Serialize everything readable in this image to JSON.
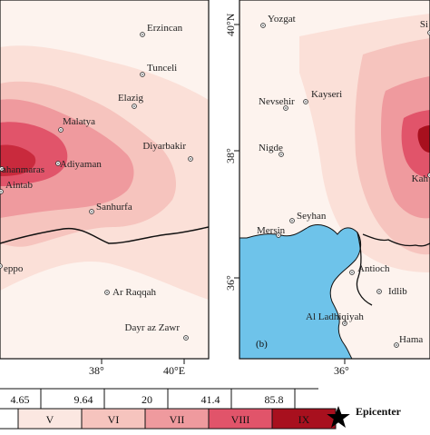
{
  "colors": {
    "sea": "#6ec3ea",
    "class_V": "#fbe7e1",
    "class_VI": "#f6c4be",
    "class_VII": "#ef9a9e",
    "class_VIII": "#e1546a",
    "class_IX": "#a8101e",
    "epicenter": "#e5203a"
  },
  "panel_a": {
    "cities": [
      {
        "name": "Erzincan"
      },
      {
        "name": "Tunceli"
      },
      {
        "name": "Elazig"
      },
      {
        "name": "Malatya"
      },
      {
        "name": "Diyarbakir"
      },
      {
        "name": "Adiyaman"
      },
      {
        "name": "ahanmaras"
      },
      {
        "name": "Aintab"
      },
      {
        "name": "Sanhurfa"
      },
      {
        "name": "eppo"
      },
      {
        "name": "Ar Raqqah"
      },
      {
        "name": "Dayr az Zawr"
      }
    ],
    "x_ticks": [
      "38°",
      "40°E"
    ]
  },
  "panel_b": {
    "label": "(b)",
    "cities": [
      {
        "name": "Yozgat"
      },
      {
        "name": "Si"
      },
      {
        "name": "Kayseri"
      },
      {
        "name": "Nevsehir"
      },
      {
        "name": "Nigde"
      },
      {
        "name": "Kah"
      },
      {
        "name": "Seyhan"
      },
      {
        "name": "Mersin"
      },
      {
        "name": "Antioch"
      },
      {
        "name": "Idlib"
      },
      {
        "name": "Al Ladhiqiyah"
      },
      {
        "name": "Hama"
      }
    ],
    "x_ticks": [
      "36°"
    ],
    "y_ticks": [
      "40°N",
      "38°",
      "36°"
    ]
  },
  "legend": {
    "thresholds": [
      "4.65",
      "9.64",
      "20",
      "41.4",
      "85.8"
    ],
    "classes": [
      {
        "label": "V",
        "color": "#fbe7e1"
      },
      {
        "label": "VI",
        "color": "#f6c4be"
      },
      {
        "label": "VII",
        "color": "#ef9a9e"
      },
      {
        "label": "VIII",
        "color": "#e1546a"
      },
      {
        "label": "IX",
        "color": "#a8101e"
      }
    ],
    "epicenter_label": "Epicenter"
  }
}
